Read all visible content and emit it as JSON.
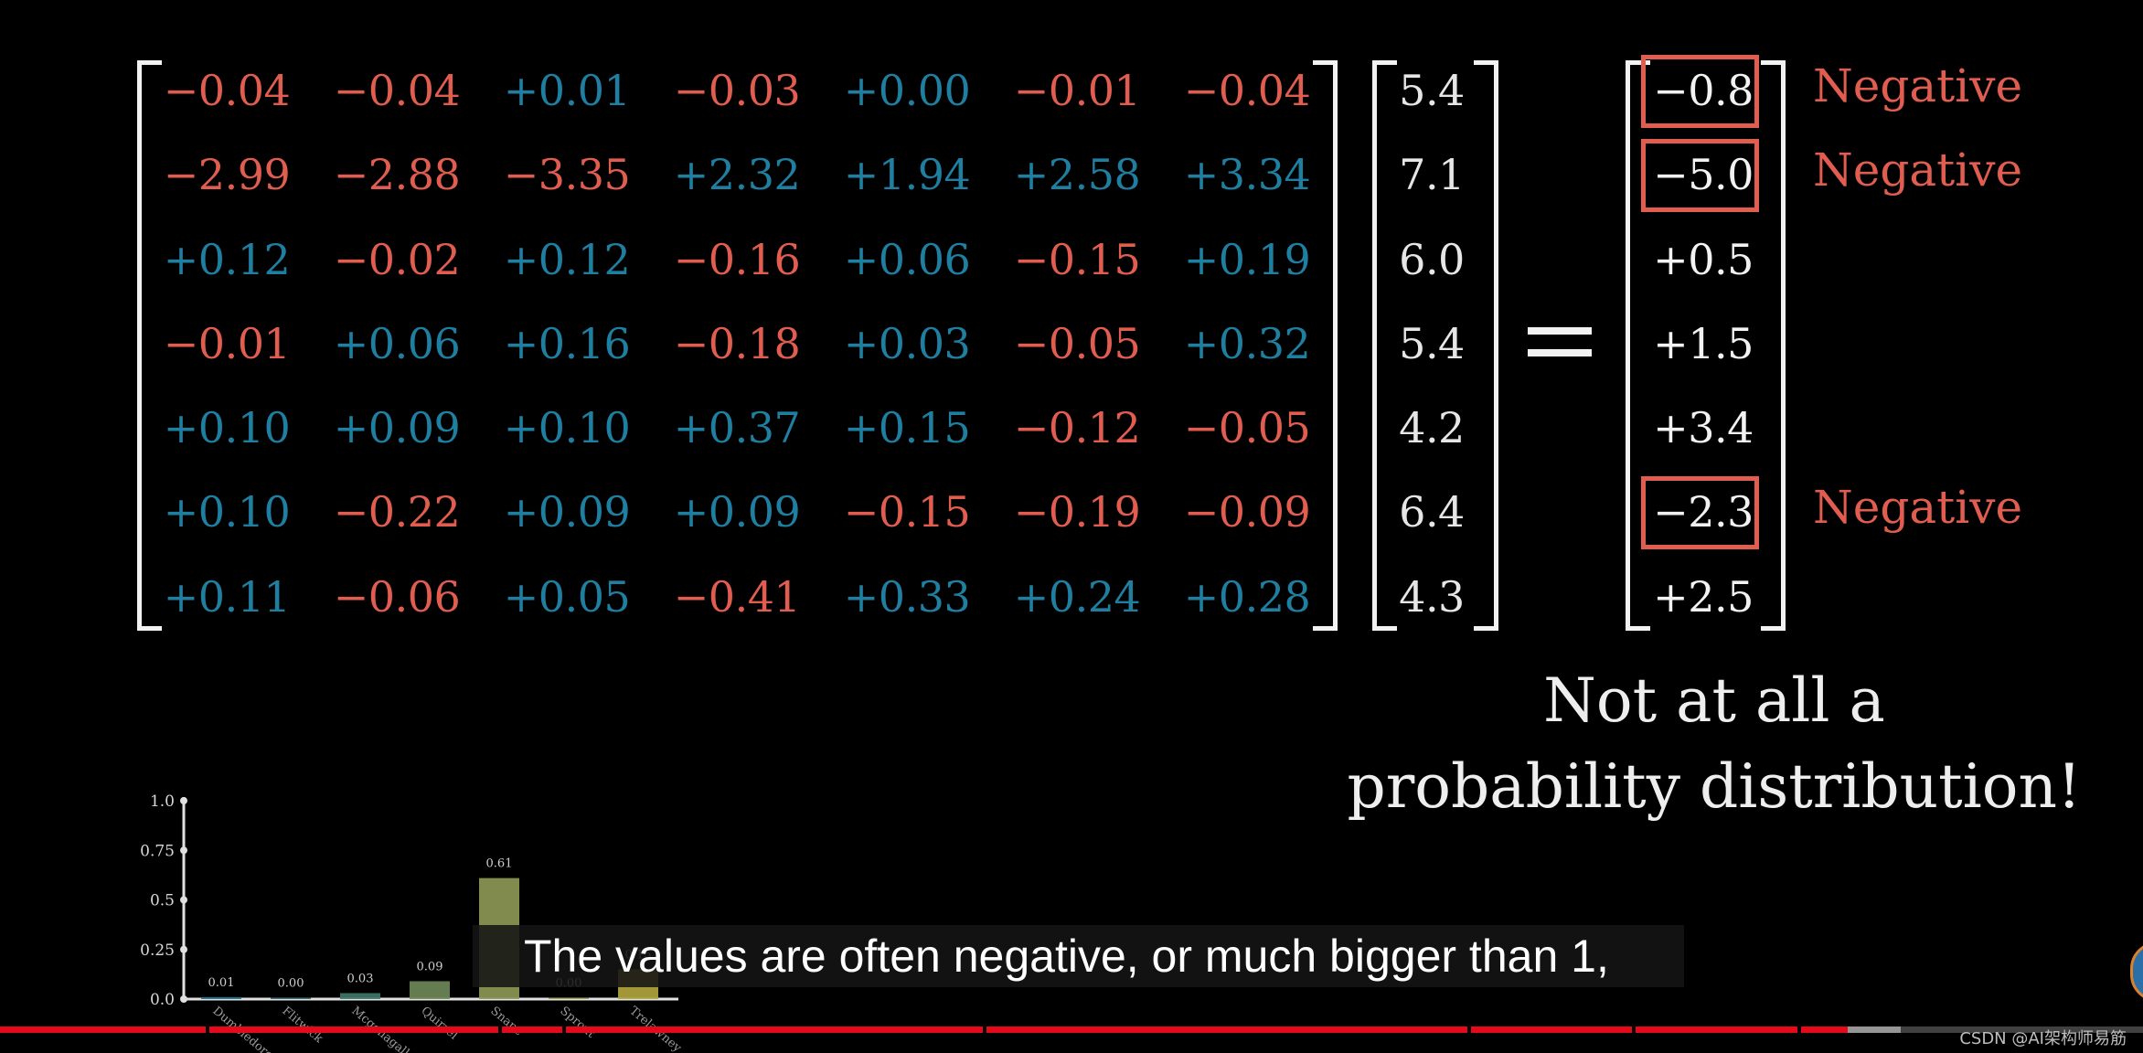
{
  "colors": {
    "negative": "#e15d50",
    "positive": "#1f7fa1",
    "text": "#f2f2f2",
    "progress": "#e5091a"
  },
  "matrix": [
    [
      "−0.04",
      "−0.04",
      "+0.01",
      "−0.03",
      "+0.00",
      "−0.01",
      "−0.04"
    ],
    [
      "−2.99",
      "−2.88",
      "−3.35",
      "+2.32",
      "+1.94",
      "+2.58",
      "+3.34"
    ],
    [
      "+0.12",
      "−0.02",
      "+0.12",
      "−0.16",
      "+0.06",
      "−0.15",
      "+0.19"
    ],
    [
      "−0.01",
      "+0.06",
      "+0.16",
      "−0.18",
      "+0.03",
      "−0.05",
      "+0.32"
    ],
    [
      "+0.10",
      "+0.09",
      "+0.10",
      "+0.37",
      "+0.15",
      "−0.12",
      "−0.05"
    ],
    [
      "+0.10",
      "−0.22",
      "+0.09",
      "+0.09",
      "−0.15",
      "−0.19",
      "−0.09"
    ],
    [
      "+0.11",
      "−0.06",
      "+0.05",
      "−0.41",
      "+0.33",
      "+0.24",
      "+0.28"
    ]
  ],
  "vector": [
    "5.4",
    "7.1",
    "6.0",
    "5.4",
    "4.2",
    "6.4",
    "4.3"
  ],
  "result": [
    "−0.8",
    "−5.0",
    "+0.5",
    "+1.5",
    "+3.4",
    "−2.3",
    "+2.5"
  ],
  "highlighted_rows": [
    0,
    1,
    5
  ],
  "negative_label": "Negative",
  "note": {
    "line1": "Not at all a",
    "line2": "probability distribution!"
  },
  "bar_chart": {
    "y_ticks": [
      "1.0",
      "0.75",
      "0.5",
      "0.25",
      "0.0"
    ],
    "bars": [
      {
        "label": "Dumbledore",
        "value": 0.01,
        "value_label": "0.01",
        "color": "#1f6f88"
      },
      {
        "label": "Flitwick",
        "value": 0.0,
        "value_label": "0.00",
        "color": "#2a6b74"
      },
      {
        "label": "Mcgonagall",
        "value": 0.03,
        "value_label": "0.03",
        "color": "#3f7a6a"
      },
      {
        "label": "Quirrel",
        "value": 0.09,
        "value_label": "0.09",
        "color": "#6f8a58"
      },
      {
        "label": "Snape",
        "value": 0.61,
        "value_label": "0.61",
        "color": "#8f9a55"
      },
      {
        "label": "Sprout",
        "value": 0.0,
        "value_label": "0.00",
        "color": "#a3a04a"
      },
      {
        "label": "Trelawney",
        "value": 0.15,
        "value_label": "0.15",
        "color": "#b3a63e"
      }
    ]
  },
  "caption": "The values are often negative, or much bigger than 1,",
  "progress": {
    "played": 0.862,
    "buffered_end": 0.887
  },
  "watermark": "CSDN @AI架构师易筋"
}
